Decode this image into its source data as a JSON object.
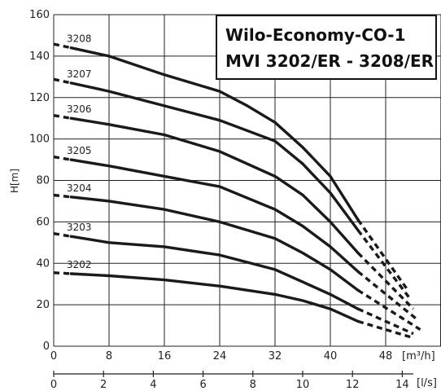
{
  "chart_data": {
    "type": "line",
    "title_lines": [
      "Wilo-Economy-CO-1",
      "MVI 3202/ER - 3208/ER"
    ],
    "ylabel": "H[m]",
    "xlabel_primary": "[m³/h]",
    "xlabel_secondary": "[l/s]",
    "ylim": [
      0,
      160
    ],
    "xlim": [
      0,
      56
    ],
    "y_ticks": [
      0,
      20,
      40,
      60,
      80,
      100,
      120,
      140,
      160
    ],
    "x_ticks_primary": [
      0,
      8,
      16,
      24,
      32,
      40,
      48
    ],
    "x_ticks_secondary": [
      0,
      2,
      4,
      6,
      8,
      10,
      12,
      14
    ],
    "grid": true,
    "series": [
      {
        "name": "3208",
        "x": [
          2.5,
          8,
          16,
          24,
          28,
          32,
          36,
          40,
          44,
          51
        ],
        "y": [
          144,
          140,
          131,
          123,
          116,
          108,
          96,
          82,
          61,
          28
        ]
      },
      {
        "name": "3207",
        "x": [
          2.5,
          8,
          16,
          24,
          32,
          36,
          40,
          44,
          51.5
        ],
        "y": [
          127,
          123,
          116,
          109,
          99,
          88,
          74,
          56,
          23
        ]
      },
      {
        "name": "3206",
        "x": [
          2.5,
          8,
          16,
          24,
          32,
          36,
          40,
          44,
          52
        ],
        "y": [
          110,
          107,
          102,
          94,
          82,
          73,
          60,
          45,
          18
        ]
      },
      {
        "name": "3205",
        "x": [
          2.5,
          8,
          16,
          24,
          32,
          36,
          40,
          44,
          52.5
        ],
        "y": [
          90,
          87,
          82,
          77,
          66,
          58,
          48,
          36,
          13
        ]
      },
      {
        "name": "3204",
        "x": [
          2.5,
          8,
          16,
          24,
          32,
          36,
          40,
          44,
          53
        ],
        "y": [
          72,
          70,
          66,
          60,
          52,
          45,
          37,
          27,
          8
        ]
      },
      {
        "name": "3203",
        "x": [
          2.5,
          8,
          16,
          24,
          32,
          36,
          40,
          44,
          52
        ],
        "y": [
          53,
          50,
          48,
          44,
          37,
          31,
          25,
          18,
          6
        ]
      },
      {
        "name": "3202",
        "x": [
          2.5,
          8,
          16,
          24,
          32,
          36,
          40,
          44,
          52
        ],
        "y": [
          35,
          34,
          32,
          29,
          25,
          22,
          18,
          12,
          4
        ]
      }
    ]
  }
}
